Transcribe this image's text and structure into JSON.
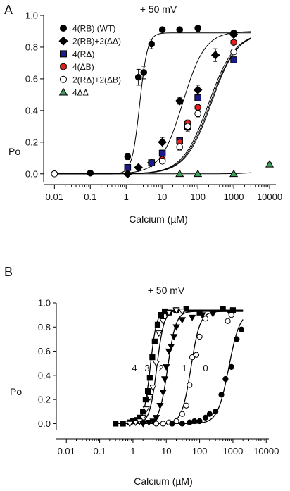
{
  "panels": [
    {
      "letter": "A",
      "header": "+ 50 mV",
      "ylabel": "Po",
      "xlabel": "Calcium (µM)",
      "xticks": [
        "0.01",
        "0.1",
        "1",
        "10",
        "100",
        "1000",
        "10000"
      ],
      "yticks": [
        "0.0",
        "0.2",
        "0.4",
        "0.6",
        "0.8",
        "1.0"
      ],
      "legend": [
        {
          "label": "4(RB) (WT)",
          "marker": "circle",
          "fill": "#000000"
        },
        {
          "label": "2(RB)+2(ΔΔ)",
          "marker": "diamond",
          "fill": "#000000"
        },
        {
          "label": "4(RΔ)",
          "marker": "square",
          "fill": "#1a1a8c"
        },
        {
          "label": "4(ΔB)",
          "marker": "hexagon",
          "fill": "#e8201c"
        },
        {
          "label": "2(RΔ)+2(ΔB)",
          "marker": "circle",
          "fill": "#ffffff"
        },
        {
          "label": "4ΔΔ",
          "marker": "triangle-up",
          "fill": "#3aa15a"
        }
      ]
    },
    {
      "letter": "B",
      "header": "+ 50 mV",
      "ylabel": "Po",
      "xlabel": "Calcium (µM)",
      "xticks": [
        "0.01",
        "0.1",
        "1",
        "10",
        "100",
        "1000",
        "10000"
      ],
      "yticks": [
        "0.0",
        "0.2",
        "0.4",
        "0.6",
        "0.8",
        "1.0"
      ],
      "curve_labels": [
        "4",
        "3",
        "2",
        "1",
        "0"
      ]
    }
  ],
  "chart_data": [
    {
      "type": "scatter",
      "panel": "A",
      "x_scale": "log",
      "xlim": [
        0.005,
        15000
      ],
      "ylim": [
        -0.05,
        1.0
      ],
      "series": [
        {
          "name": "4(RB) (WT)",
          "marker": "circle",
          "color": "#000000",
          "x": [
            0.01,
            0.1,
            1.1,
            2.2,
            3.1,
            5.1,
            10.2,
            31,
            100,
            1000
          ],
          "y": [
            0.0,
            0.005,
            0.11,
            0.61,
            0.64,
            0.82,
            0.91,
            0.91,
            0.92,
            0.89
          ],
          "err": [
            0.0,
            0.0,
            0.02,
            0.05,
            0.04,
            0.03,
            0.01,
            0.01,
            0.02,
            0.01
          ],
          "fit": {
            "ec50": 2.4,
            "n": 4.0,
            "top": 0.89
          }
        },
        {
          "name": "2(RB)+2(ΔΔ)",
          "marker": "diamond",
          "color": "#000000",
          "x": [
            1.1,
            2.2,
            5.1,
            10.2,
            31,
            100,
            310,
            1000
          ],
          "y": [
            0.0,
            0.04,
            0.07,
            0.2,
            0.46,
            0.53,
            0.75,
            0.88
          ],
          "err": [
            0.0,
            0.0,
            0.01,
            0.03,
            0.02,
            0.03,
            0.04,
            0.01
          ],
          "fit": {
            "ec50": 38,
            "n": 1.4,
            "top": 0.9
          }
        },
        {
          "name": "4(RΔ)",
          "marker": "square",
          "color": "#1a1a8c",
          "x": [
            1.1,
            5.1,
            10.2,
            31,
            52,
            100,
            1000
          ],
          "y": [
            0.04,
            0.07,
            0.13,
            0.21,
            0.3,
            0.48,
            0.72
          ],
          "err": [
            0.0,
            0.0,
            0.02,
            0.02,
            0.03,
            0.02,
            0.0
          ],
          "fit": {
            "ec50": 200,
            "n": 1.2,
            "top": 0.89
          }
        },
        {
          "name": "4(ΔB)",
          "marker": "hexagon",
          "color": "#e8201c",
          "x": [
            10.2,
            31,
            52,
            100,
            1000
          ],
          "y": [
            0.09,
            0.2,
            0.32,
            0.42,
            0.83
          ],
          "err": [
            0.0,
            0.01,
            0.02,
            0.02,
            0.0
          ],
          "fit": {
            "ec50": 220,
            "n": 1.2,
            "top": 0.89
          }
        },
        {
          "name": "2(RΔ)+2(ΔB)",
          "marker": "circle",
          "color": "#ffffff",
          "x": [
            0.01,
            10.2,
            31,
            52,
            100,
            1000
          ],
          "y": [
            0.0,
            0.08,
            0.17,
            0.3,
            0.38,
            0.77
          ],
          "err": [
            0.0,
            0.01,
            0.02,
            0.02,
            0.02,
            0.0
          ],
          "fit": {
            "ec50": 240,
            "n": 1.2,
            "top": 0.9
          }
        },
        {
          "name": "4ΔΔ",
          "marker": "triangle-up",
          "color": "#3aa15a",
          "x": [
            31,
            100,
            1000,
            10000
          ],
          "y": [
            0.0,
            0.0,
            0.0,
            0.06
          ],
          "err": [
            0.0,
            0.0,
            0.0,
            0.01
          ],
          "fit": {
            "ec50": 60000,
            "n": 1.4,
            "top": 0.5
          }
        }
      ]
    },
    {
      "type": "scatter",
      "panel": "B",
      "x_scale": "log",
      "xlim": [
        0.005,
        12000
      ],
      "ylim": [
        -0.05,
        1.0
      ],
      "series": [
        {
          "name": "4",
          "marker": "square",
          "color": "#000000",
          "x": [
            0.3,
            0.5,
            0.8,
            1.0,
            1.3,
            1.6,
            2.0,
            2.4,
            2.8,
            3.2,
            3.8,
            4.5,
            5.5,
            7.0,
            9.0,
            12,
            20,
            40,
            100,
            500,
            1000
          ],
          "y": [
            0.0,
            0.0,
            0.01,
            0.02,
            0.03,
            0.05,
            0.1,
            0.2,
            0.27,
            0.38,
            0.55,
            0.68,
            0.82,
            0.9,
            0.93,
            0.92,
            0.94,
            0.95,
            0.92,
            0.95,
            0.94
          ],
          "fit": {
            "ec50": 3.3,
            "n": 4.5,
            "top": 0.94
          }
        },
        {
          "name": "3",
          "marker": "triangle-down-open",
          "color": "#ffffff",
          "x": [
            0.8,
            1.2,
            1.6,
            2.0,
            2.5,
            3.2,
            4.0,
            5.0,
            6.0,
            8.0,
            12,
            20,
            30
          ],
          "y": [
            0.0,
            0.01,
            0.02,
            0.05,
            0.12,
            0.22,
            0.3,
            0.5,
            0.75,
            0.85,
            0.92,
            0.94,
            0.93
          ],
          "fit": {
            "ec50": 5.2,
            "n": 4.0,
            "top": 0.94
          }
        },
        {
          "name": "2",
          "marker": "triangle-down",
          "color": "#000000",
          "x": [
            2.0,
            3.0,
            4.0,
            5.0,
            6.5,
            8.0,
            9.0,
            10,
            12,
            14,
            17,
            20,
            30,
            60,
            120,
            250,
            800
          ],
          "y": [
            0.0,
            0.01,
            0.02,
            0.05,
            0.15,
            0.26,
            0.37,
            0.47,
            0.6,
            0.64,
            0.72,
            0.8,
            0.86,
            0.88,
            0.9,
            0.91,
            0.92
          ],
          "fit": {
            "ec50": 11,
            "n": 3.5,
            "top": 0.93
          }
        },
        {
          "name": "1",
          "marker": "circle-open",
          "color": "#ffffff",
          "x": [
            5,
            8,
            12,
            15,
            20,
            30,
            40,
            50,
            60,
            80,
            100,
            150,
            700,
            900
          ],
          "y": [
            0.0,
            0.0,
            0.01,
            0.0,
            0.02,
            0.08,
            0.15,
            0.32,
            0.55,
            0.57,
            0.72,
            0.87,
            0.85,
            0.9
          ],
          "fit": {
            "ec50": 55,
            "n": 3.2,
            "top": 0.93
          }
        },
        {
          "name": "0",
          "marker": "circle",
          "color": "#000000",
          "x": [
            15,
            30,
            50,
            70,
            100,
            150,
            200,
            300,
            450,
            600,
            900,
            1300,
            1800
          ],
          "y": [
            0.0,
            0.0,
            0.01,
            0.02,
            0.02,
            0.05,
            0.08,
            0.1,
            0.24,
            0.37,
            0.47,
            0.7,
            0.78
          ],
          "fit": {
            "ec50": 750,
            "n": 2.6,
            "top": 0.93
          }
        }
      ]
    }
  ]
}
